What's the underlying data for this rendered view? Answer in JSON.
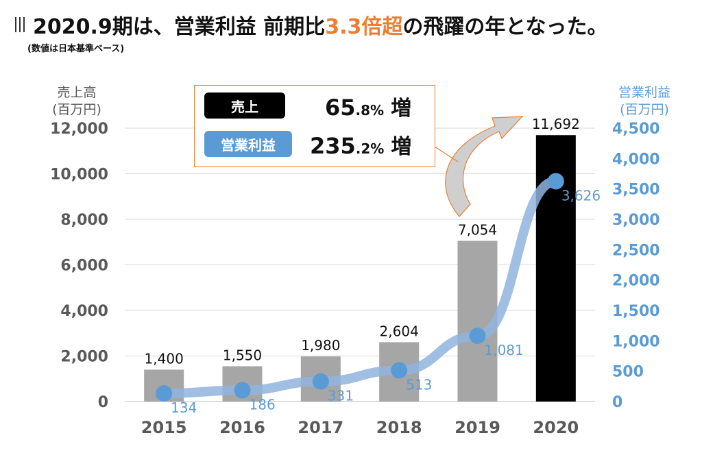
{
  "header": {
    "title_prefix": "2020.9期は、営業利益 前期比",
    "title_highlight": "3.3倍超",
    "title_suffix": "の飛躍の年となった。",
    "subtitle": "(数値は日本基準ベース)"
  },
  "callout": {
    "sales_label": "売上",
    "sales_value_int": "65",
    "sales_value_dec": ".8%",
    "sales_word": "増",
    "profit_label": "営業利益",
    "profit_value_int": "235",
    "profit_value_dec": ".2%",
    "profit_word": "増"
  },
  "chart_data": {
    "type": "bar+line",
    "categories": [
      "2015",
      "2016",
      "2017",
      "2018",
      "2019",
      "2020"
    ],
    "series": [
      {
        "name": "売上高",
        "type": "bar",
        "axis": "left",
        "values": [
          1400,
          1550,
          1980,
          2604,
          7054,
          11692
        ],
        "labels": [
          "1,400",
          "1,550",
          "1,980",
          "2,604",
          "7,054",
          "11,692"
        ]
      },
      {
        "name": "営業利益",
        "type": "line",
        "axis": "right",
        "values": [
          134,
          186,
          331,
          513,
          1081,
          3626
        ],
        "labels": [
          "134",
          "186",
          "331",
          "513",
          "1,081",
          "3,626"
        ]
      }
    ],
    "ylabel_left": "売上高\n(百万円)",
    "ylabel_left_lines": [
      "売上高",
      "(百万円)"
    ],
    "ylabel_right_lines": [
      "営業利益",
      "(百万円)"
    ],
    "ylim_left": [
      0,
      12000
    ],
    "ylim_right": [
      0,
      4500
    ],
    "yticks_left": [
      "0",
      "2,000",
      "4,000",
      "6,000",
      "8,000",
      "10,000",
      "12,000"
    ],
    "yticks_right": [
      "0",
      "500",
      "1,000",
      "1,500",
      "2,000",
      "2,500",
      "3,000",
      "3,500",
      "4,000",
      "4,500"
    ],
    "grid": true,
    "colors": {
      "bar": "#a6a6a6",
      "bar_highlight": "#000000",
      "line": "#8fb4de",
      "marker": "#5b9bd5",
      "right_axis": "#5b9bd5",
      "left_axis": "#595959",
      "accent": "#ed7d31"
    }
  }
}
